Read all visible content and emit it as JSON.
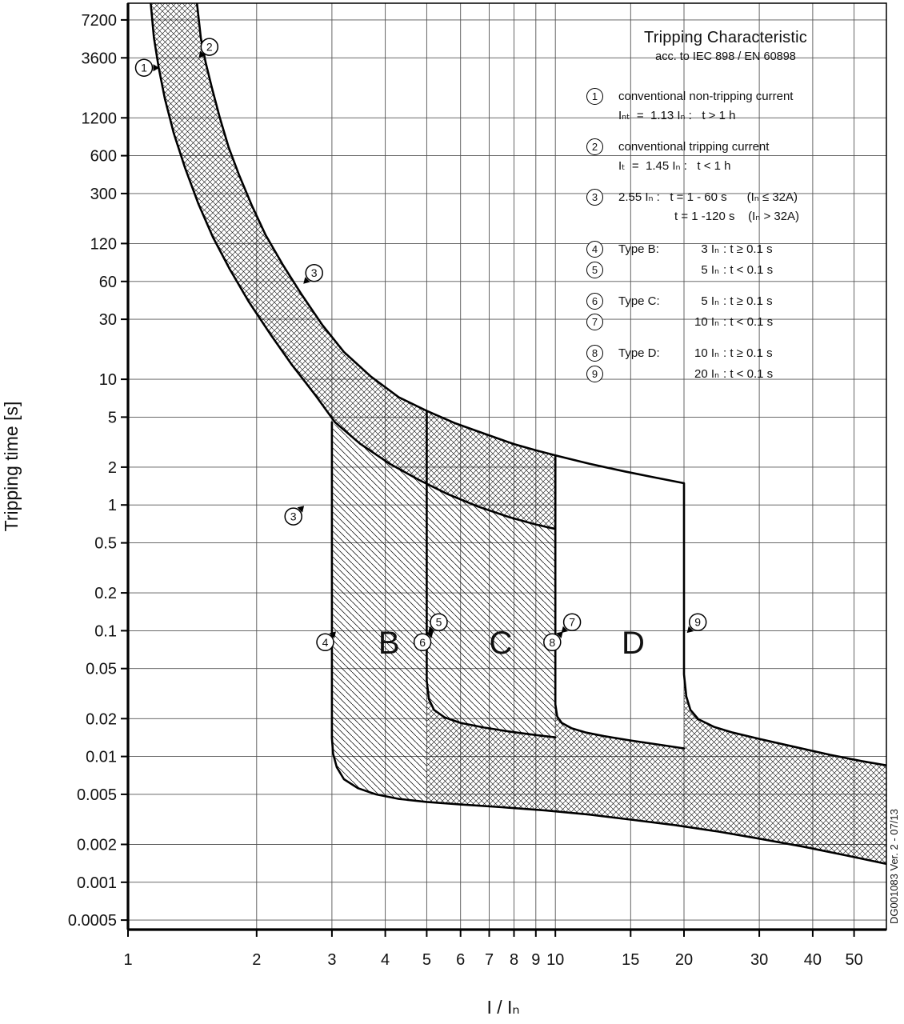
{
  "chart_data": {
    "type": "line",
    "title": "Tripping Characteristic",
    "subtitle": "acc. to IEC 898 / EN 60898",
    "xlabel": "I / Iₙ",
    "ylabel": "Tripping time [s]",
    "watermark": "DG001083 Ver. 2 - 07/13",
    "x_scale": "log",
    "y_scale": "log",
    "x_range": [
      1,
      59.5
    ],
    "y_range": [
      0.00042,
      9786
    ],
    "x_ticks": [
      1,
      2,
      3,
      4,
      5,
      6,
      7,
      8,
      9,
      10,
      15,
      20,
      30,
      40,
      50
    ],
    "y_ticks": [
      7200,
      3600,
      1200,
      600,
      300,
      120,
      60,
      30,
      10,
      5,
      2,
      1,
      0.5,
      0.2,
      0.1,
      0.05,
      0.02,
      0.01,
      0.005,
      0.002,
      0.001,
      0.0005
    ],
    "grid": true,
    "series": [
      {
        "name": "upper-tripping-limit-curve",
        "points": [
          [
            1.45,
            9786
          ],
          [
            1.48,
            5200
          ],
          [
            1.52,
            3300
          ],
          [
            1.57,
            2100
          ],
          [
            1.64,
            1200
          ],
          [
            1.72,
            700
          ],
          [
            1.82,
            420
          ],
          [
            1.95,
            240
          ],
          [
            2.1,
            140
          ],
          [
            2.3,
            82
          ],
          [
            2.55,
            47
          ],
          [
            2.85,
            27
          ],
          [
            3.2,
            16.5
          ],
          [
            3.7,
            10.5
          ],
          [
            4.3,
            7.2
          ],
          [
            5.0,
            5.6
          ],
          [
            5.8,
            4.5
          ],
          [
            6.8,
            3.7
          ],
          [
            8.0,
            3.05
          ],
          [
            9.0,
            2.72
          ],
          [
            10.2,
            2.44
          ],
          [
            12,
            2.13
          ],
          [
            14.5,
            1.85
          ],
          [
            17,
            1.66
          ],
          [
            20,
            1.49
          ],
          [
            20,
            0.045
          ],
          [
            20.25,
            0.03
          ],
          [
            20.7,
            0.0235
          ],
          [
            21.6,
            0.0198
          ],
          [
            23.5,
            0.0172
          ],
          [
            26,
            0.0155
          ],
          [
            30,
            0.0138
          ],
          [
            36,
            0.012
          ],
          [
            44,
            0.0103
          ],
          [
            52,
            0.0092
          ],
          [
            59.5,
            0.0085
          ]
        ]
      },
      {
        "name": "lower-tripping-limit-curve",
        "points": [
          [
            1.13,
            9786
          ],
          [
            1.15,
            5200
          ],
          [
            1.18,
            3000
          ],
          [
            1.22,
            1700
          ],
          [
            1.28,
            900
          ],
          [
            1.36,
            480
          ],
          [
            1.46,
            250
          ],
          [
            1.58,
            135
          ],
          [
            1.73,
            75
          ],
          [
            1.92,
            41
          ],
          [
            2.15,
            23
          ],
          [
            2.42,
            13
          ],
          [
            2.75,
            7.4
          ],
          [
            3.05,
            4.55
          ],
          [
            3.5,
            3.05
          ],
          [
            4.1,
            2.12
          ],
          [
            4.8,
            1.58
          ],
          [
            5.6,
            1.22
          ],
          [
            6.6,
            0.97
          ],
          [
            7.8,
            0.8
          ],
          [
            9.0,
            0.7
          ],
          [
            10.0,
            0.645
          ]
        ]
      },
      {
        "name": "type-b-3In-boundary",
        "points": [
          [
            3.0,
            4.55
          ],
          [
            3.0,
            0.014
          ],
          [
            3.02,
            0.0105
          ],
          [
            3.08,
            0.0082
          ],
          [
            3.2,
            0.0066
          ],
          [
            3.45,
            0.0056
          ],
          [
            3.8,
            0.005
          ],
          [
            4.3,
            0.0046
          ],
          [
            5.0,
            0.00435
          ],
          [
            6.0,
            0.00415
          ],
          [
            7.5,
            0.00395
          ],
          [
            9.5,
            0.00372
          ],
          [
            12,
            0.00345
          ],
          [
            15,
            0.00315
          ],
          [
            19,
            0.00285
          ],
          [
            24,
            0.00253
          ],
          [
            30,
            0.00222
          ],
          [
            38,
            0.00192
          ],
          [
            48,
            0.00163
          ],
          [
            59.5,
            0.0014
          ]
        ]
      },
      {
        "name": "type-b-c-5In-boundary",
        "points": [
          [
            5.0,
            5.6
          ],
          [
            5.0,
            0.04
          ],
          [
            5.06,
            0.0285
          ],
          [
            5.2,
            0.0235
          ],
          [
            5.5,
            0.0205
          ],
          [
            6.0,
            0.0185
          ],
          [
            6.8,
            0.017
          ],
          [
            7.8,
            0.0158
          ],
          [
            9.0,
            0.0148
          ],
          [
            10.0,
            0.0142
          ]
        ]
      },
      {
        "name": "type-c-d-10In-boundary",
        "points": [
          [
            10.0,
            2.44
          ],
          [
            10.0,
            0.026
          ],
          [
            10.1,
            0.0208
          ],
          [
            10.35,
            0.0185
          ],
          [
            10.9,
            0.0168
          ],
          [
            11.8,
            0.0155
          ],
          [
            13.0,
            0.0145
          ],
          [
            15.0,
            0.0134
          ],
          [
            17.5,
            0.0124
          ],
          [
            20.0,
            0.0116
          ]
        ]
      }
    ],
    "areas": [
      {
        "name": "thermal-tolerance-band",
        "pattern": "cross",
        "points": [
          [
            1.45,
            9786
          ],
          [
            1.48,
            5200
          ],
          [
            1.52,
            3300
          ],
          [
            1.57,
            2100
          ],
          [
            1.64,
            1200
          ],
          [
            1.72,
            700
          ],
          [
            1.82,
            420
          ],
          [
            1.95,
            240
          ],
          [
            2.1,
            140
          ],
          [
            2.3,
            82
          ],
          [
            2.55,
            47
          ],
          [
            2.85,
            27
          ],
          [
            3.2,
            16.5
          ],
          [
            3.7,
            10.5
          ],
          [
            4.3,
            7.2
          ],
          [
            5.0,
            5.6
          ],
          [
            5.8,
            4.5
          ],
          [
            6.8,
            3.7
          ],
          [
            8.0,
            3.05
          ],
          [
            9.0,
            2.72
          ],
          [
            10.2,
            2.44
          ],
          [
            10.0,
            2.44
          ],
          [
            10.0,
            0.645
          ],
          [
            9.0,
            0.7
          ],
          [
            7.8,
            0.8
          ],
          [
            6.6,
            0.97
          ],
          [
            5.6,
            1.22
          ],
          [
            4.8,
            1.58
          ],
          [
            4.1,
            2.12
          ],
          [
            3.5,
            3.05
          ],
          [
            3.05,
            4.55
          ],
          [
            2.75,
            7.4
          ],
          [
            2.42,
            13
          ],
          [
            2.15,
            23
          ],
          [
            1.92,
            41
          ],
          [
            1.73,
            75
          ],
          [
            1.58,
            135
          ],
          [
            1.46,
            250
          ],
          [
            1.36,
            480
          ],
          [
            1.28,
            900
          ],
          [
            1.22,
            1700
          ],
          [
            1.18,
            3000
          ],
          [
            1.15,
            5200
          ],
          [
            1.13,
            9786
          ]
        ]
      },
      {
        "name": "type-b-region",
        "pattern": "diag",
        "points": [
          [
            3.0,
            4.55
          ],
          [
            3.5,
            3.05
          ],
          [
            4.1,
            2.12
          ],
          [
            4.8,
            1.58
          ],
          [
            5.0,
            1.48
          ],
          [
            5.0,
            0.00435
          ],
          [
            4.3,
            0.0046
          ],
          [
            3.8,
            0.005
          ],
          [
            3.45,
            0.0056
          ],
          [
            3.2,
            0.0066
          ],
          [
            3.08,
            0.0082
          ],
          [
            3.02,
            0.0105
          ],
          [
            3.0,
            0.014
          ]
        ]
      },
      {
        "name": "type-c-region",
        "pattern": "diag",
        "points": [
          [
            5.0,
            1.48
          ],
          [
            5.6,
            1.22
          ],
          [
            6.6,
            0.97
          ],
          [
            7.8,
            0.8
          ],
          [
            9.0,
            0.7
          ],
          [
            10.0,
            0.645
          ],
          [
            10.0,
            0.0142
          ],
          [
            9.0,
            0.0148
          ],
          [
            7.8,
            0.0158
          ],
          [
            6.8,
            0.017
          ],
          [
            6.0,
            0.0185
          ],
          [
            5.5,
            0.0205
          ],
          [
            5.2,
            0.0235
          ],
          [
            5.06,
            0.0285
          ],
          [
            5.0,
            0.04
          ]
        ]
      },
      {
        "name": "instantaneous-trip-floor-band",
        "pattern": "cross",
        "points": [
          [
            5.0,
            0.04
          ],
          [
            5.06,
            0.0285
          ],
          [
            5.2,
            0.0235
          ],
          [
            5.5,
            0.0205
          ],
          [
            6.0,
            0.0185
          ],
          [
            6.8,
            0.017
          ],
          [
            7.8,
            0.0158
          ],
          [
            9.0,
            0.0148
          ],
          [
            10.0,
            0.0142
          ],
          [
            10.0,
            0.026
          ],
          [
            10.1,
            0.0208
          ],
          [
            10.35,
            0.0185
          ],
          [
            10.9,
            0.0168
          ],
          [
            11.8,
            0.0155
          ],
          [
            13.0,
            0.0145
          ],
          [
            15.0,
            0.0134
          ],
          [
            17.5,
            0.0124
          ],
          [
            20.0,
            0.0116
          ],
          [
            20.0,
            0.045
          ],
          [
            20.25,
            0.03
          ],
          [
            20.7,
            0.0235
          ],
          [
            21.6,
            0.0198
          ],
          [
            23.5,
            0.0172
          ],
          [
            26,
            0.0155
          ],
          [
            30,
            0.0138
          ],
          [
            36,
            0.012
          ],
          [
            44,
            0.0103
          ],
          [
            52,
            0.0092
          ],
          [
            59.5,
            0.0085
          ],
          [
            59.5,
            0.0014
          ],
          [
            48,
            0.00163
          ],
          [
            38,
            0.00192
          ],
          [
            30,
            0.00222
          ],
          [
            24,
            0.00253
          ],
          [
            19,
            0.00285
          ],
          [
            15,
            0.00315
          ],
          [
            12,
            0.00345
          ],
          [
            9.5,
            0.00372
          ],
          [
            7.5,
            0.00395
          ],
          [
            6.0,
            0.00415
          ],
          [
            5.0,
            0.00435
          ]
        ]
      }
    ],
    "region_labels": [
      {
        "label": "B",
        "x": 4.08,
        "t": 0.066
      },
      {
        "label": "C",
        "x": 7.45,
        "t": 0.066
      },
      {
        "label": "D",
        "x": 15.2,
        "t": 0.066
      }
    ],
    "markers": [
      {
        "num": "1",
        "x": 1.09,
        "t": 3000,
        "dir": "e"
      },
      {
        "num": "2",
        "x": 1.551,
        "t": 4400,
        "dir": "sw"
      },
      {
        "num": "3",
        "x": 2.726,
        "t": 70,
        "dir": "sw"
      },
      {
        "num": "3",
        "x": 2.437,
        "t": 0.81,
        "dir": "ne"
      },
      {
        "num": "4",
        "x": 2.894,
        "t": 0.081,
        "dir": "ne"
      },
      {
        "num": "5",
        "x": 5.336,
        "t": 0.117,
        "dir": "sw"
      },
      {
        "num": "6",
        "x": 4.887,
        "t": 0.081,
        "dir": "ne"
      },
      {
        "num": "7",
        "x": 10.94,
        "t": 0.117,
        "dir": "sw"
      },
      {
        "num": "8",
        "x": 9.83,
        "t": 0.081,
        "dir": "ne"
      },
      {
        "num": "9",
        "x": 21.53,
        "t": 0.117,
        "dir": "sw"
      }
    ]
  },
  "legend": {
    "title": "Tripping Characteristic",
    "subtitle": "acc. to IEC 898 / EN 60898",
    "notes": [
      {
        "num": "1",
        "line1": "conventional non-tripping current",
        "line2": "Iₙₜ  =  1.13 Iₙ :   t > 1 h",
        "indent": false
      },
      {
        "num": "2",
        "line1": "conventional tripping current",
        "line2": "Iₜ  =  1.45 Iₙ :   t < 1 h",
        "indent": false
      },
      {
        "num": "3",
        "line1": "2.55 Iₙ :   t = 1 - 60 s      (Iₙ ≤ 32A)",
        "line2": "t = 1 -120 s    (Iₙ > 32A)",
        "indent": true
      }
    ],
    "types": [
      {
        "num": "4",
        "label": "Type B:",
        "mult": "3 Iₙ",
        "cond": ": t ≥ 0.1 s"
      },
      {
        "num": "5",
        "label": "",
        "mult": "5 Iₙ",
        "cond": ": t < 0.1 s"
      },
      {
        "num": "6",
        "label": "Type C:",
        "mult": "5 Iₙ",
        "cond": ": t ≥ 0.1 s"
      },
      {
        "num": "7",
        "label": "",
        "mult": "10 Iₙ",
        "cond": ": t < 0.1 s"
      },
      {
        "num": "8",
        "label": "Type D:",
        "mult": "10 Iₙ",
        "cond": ": t ≥ 0.1 s"
      },
      {
        "num": "9",
        "label": "",
        "mult": "20 Iₙ",
        "cond": ": t < 0.1 s"
      }
    ]
  }
}
